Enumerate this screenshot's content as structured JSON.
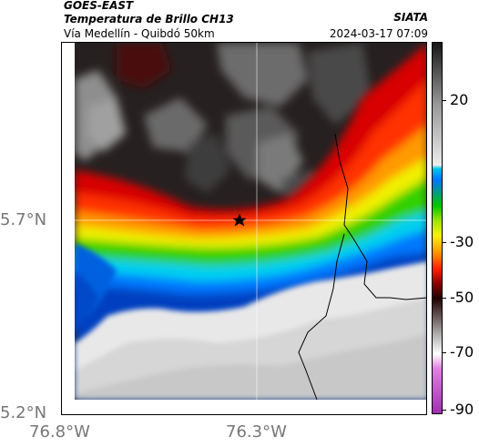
{
  "header": {
    "satellite": "GOES-EAST",
    "product": "Temperatura de Brillo CH13",
    "region": "Vía Medellín - Quibdó 50km",
    "organization": "SIATA",
    "datetime": "2024-03-17 07:09"
  },
  "map": {
    "lat_labels": [
      "5.7°N",
      "5.2°N"
    ],
    "lon_labels": [
      "76.8°W",
      "76.3°W"
    ],
    "marker_icon": "star-icon"
  },
  "colorbar": {
    "tick_labels": [
      "20",
      "-30",
      "-50",
      "-70",
      "-90"
    ],
    "colors": [
      "#161616",
      "#9a9a9a",
      "#ececec",
      "#00c4e8",
      "#0074ff",
      "#00c600",
      "#f6f400",
      "#ff8c00",
      "#ff2000",
      "#880000",
      "#200000",
      "#b4b4b4",
      "#ffffff",
      "#a030b0"
    ]
  }
}
